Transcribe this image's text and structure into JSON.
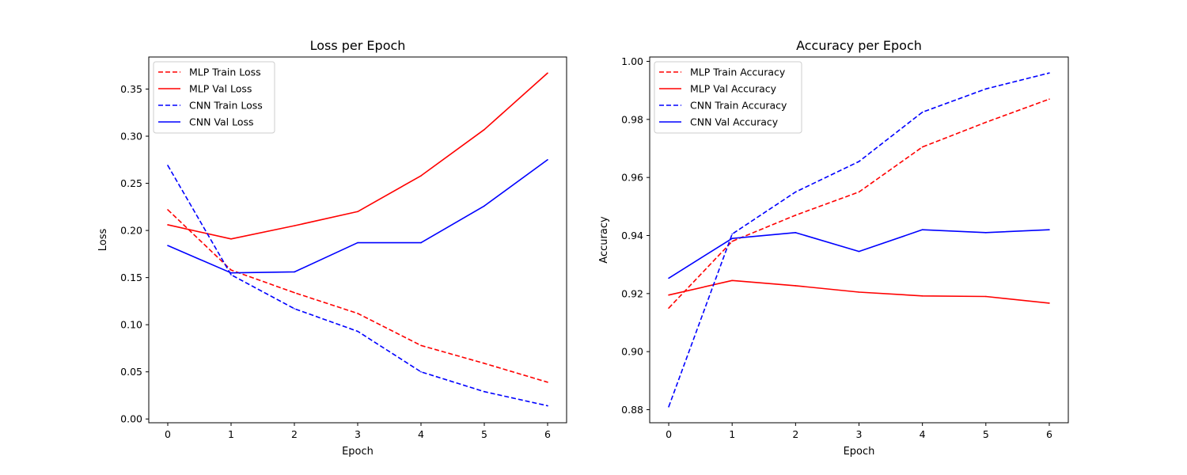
{
  "chart_data": [
    {
      "type": "line",
      "title": "Loss per Epoch",
      "xlabel": "Epoch",
      "ylabel": "Loss",
      "x": [
        0,
        1,
        2,
        3,
        4,
        5,
        6
      ],
      "xlim": [
        -0.3,
        6.3
      ],
      "ylim": [
        -0.004,
        0.384
      ],
      "xticks": [
        0,
        1,
        2,
        3,
        4,
        5,
        6
      ],
      "yticks": [
        0.0,
        0.05,
        0.1,
        0.15,
        0.2,
        0.25,
        0.3,
        0.35
      ],
      "ytick_labels": [
        "0.00",
        "0.05",
        "0.10",
        "0.15",
        "0.20",
        "0.25",
        "0.30",
        "0.35"
      ],
      "grid": false,
      "legend_position": "upper-left",
      "series": [
        {
          "name": "MLP Train Loss",
          "color": "#ff0000",
          "style": "dashed",
          "values": [
            0.222,
            0.158,
            0.134,
            0.112,
            0.078,
            0.059,
            0.039
          ]
        },
        {
          "name": "MLP Val Loss",
          "color": "#ff0000",
          "style": "solid",
          "values": [
            0.206,
            0.191,
            0.205,
            0.22,
            0.258,
            0.307,
            0.367
          ]
        },
        {
          "name": "CNN Train Loss",
          "color": "#0000ff",
          "style": "dashed",
          "values": [
            0.269,
            0.153,
            0.117,
            0.093,
            0.05,
            0.029,
            0.014
          ]
        },
        {
          "name": "CNN Val Loss",
          "color": "#0000ff",
          "style": "solid",
          "values": [
            0.184,
            0.155,
            0.156,
            0.187,
            0.187,
            0.226,
            0.275
          ]
        }
      ]
    },
    {
      "type": "line",
      "title": "Accuracy per Epoch",
      "xlabel": "Epoch",
      "ylabel": "Accuracy",
      "x": [
        0,
        1,
        2,
        3,
        4,
        5,
        6
      ],
      "xlim": [
        -0.3,
        6.3
      ],
      "ylim": [
        0.8755,
        1.0015
      ],
      "xticks": [
        0,
        1,
        2,
        3,
        4,
        5,
        6
      ],
      "yticks": [
        0.88,
        0.9,
        0.92,
        0.94,
        0.96,
        0.98,
        1.0
      ],
      "ytick_labels": [
        "0.88",
        "0.90",
        "0.92",
        "0.94",
        "0.96",
        "0.98",
        "1.00"
      ],
      "grid": false,
      "legend_position": "upper-left",
      "series": [
        {
          "name": "MLP Train Accuracy",
          "color": "#ff0000",
          "style": "dashed",
          "values": [
            0.915,
            0.938,
            0.947,
            0.955,
            0.9705,
            0.979,
            0.987
          ]
        },
        {
          "name": "MLP Val Accuracy",
          "color": "#ff0000",
          "style": "solid",
          "values": [
            0.9195,
            0.9245,
            0.9227,
            0.9205,
            0.9192,
            0.919,
            0.9167
          ]
        },
        {
          "name": "CNN Train Accuracy",
          "color": "#0000ff",
          "style": "dashed",
          "values": [
            0.881,
            0.9405,
            0.955,
            0.9655,
            0.9825,
            0.9905,
            0.996
          ]
        },
        {
          "name": "CNN Val Accuracy",
          "color": "#0000ff",
          "style": "solid",
          "values": [
            0.9253,
            0.939,
            0.941,
            0.9345,
            0.942,
            0.941,
            0.942
          ]
        }
      ]
    }
  ]
}
